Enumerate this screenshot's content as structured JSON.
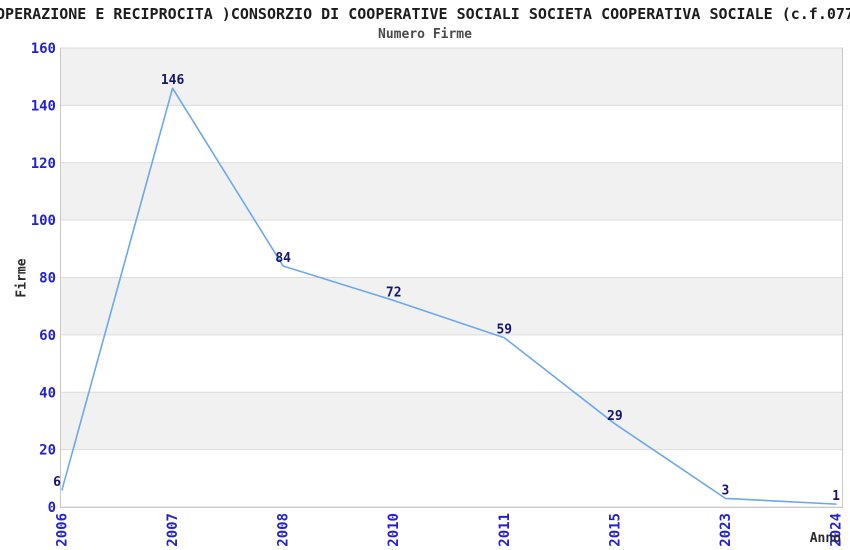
{
  "header": {
    "title": "OPERAZIONE E RECIPROCITA )CONSORZIO DI COOPERATIVE SOCIALI SOCIETA COOPERATIVA SOCIALE (c.f.077",
    "subtitle": "Numero Firme"
  },
  "chart_data": {
    "type": "line",
    "title": "Numero Firme",
    "categories": [
      "2006",
      "2007",
      "2008",
      "2010",
      "2011",
      "2015",
      "2023",
      "2024"
    ],
    "values": [
      6,
      146,
      84,
      72,
      59,
      29,
      3,
      1
    ],
    "xlabel": "Anno",
    "ylabel": "Firme",
    "ylim": [
      0,
      160
    ],
    "ytick_step": 20,
    "yticks": [
      0,
      20,
      40,
      60,
      80,
      100,
      120,
      140,
      160
    ],
    "grid": true,
    "legend": "none",
    "colors": {
      "line": "#6ea7ec",
      "band_gray": "#f1f1f1",
      "band_white": "#ffffff",
      "gridline": "#dcdcdc",
      "axis_border": "#c9c9c9",
      "tick_label": "#2323cd",
      "data_label": "#15156b",
      "title": "#1c1c1c",
      "subtitle": "#4a4a4a",
      "axis_title": "#2b2b2b"
    }
  }
}
